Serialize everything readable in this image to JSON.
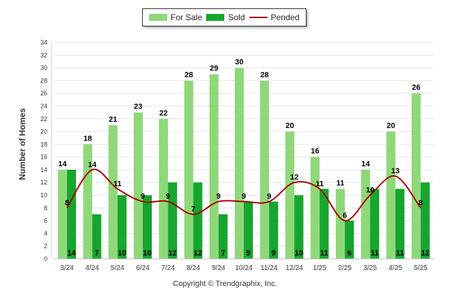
{
  "chart_data": {
    "type": "bar",
    "categories": [
      "3/24",
      "4/24",
      "5/24",
      "6/24",
      "7/24",
      "8/24",
      "9/24",
      "10/24",
      "11/24",
      "12/24",
      "1/25",
      "2/25",
      "3/25",
      "4/25",
      "5/25"
    ],
    "series": [
      {
        "name": "For Sale",
        "type": "bar",
        "color": "#8fd87a",
        "values": [
          14,
          18,
          21,
          23,
          22,
          28,
          29,
          30,
          28,
          20,
          16,
          11,
          14,
          20,
          26
        ]
      },
      {
        "name": "Sold",
        "type": "bar",
        "color": "#16a52e",
        "values": [
          14,
          7,
          10,
          10,
          12,
          12,
          7,
          9,
          9,
          10,
          11,
          6,
          11,
          11,
          12
        ]
      },
      {
        "name": "Pended",
        "type": "line",
        "color": "#b00000",
        "values": [
          8,
          14,
          11,
          9,
          9,
          7,
          9,
          9,
          9,
          12,
          11,
          6,
          10,
          13,
          8
        ]
      }
    ],
    "ylabel": "Number of Homes",
    "ylim": [
      0,
      34
    ],
    "yticks": [
      0,
      2,
      4,
      6,
      8,
      10,
      12,
      14,
      16,
      18,
      20,
      22,
      24,
      26,
      28,
      30,
      32,
      34
    ],
    "grid": true,
    "legend": "top-center"
  },
  "footer": {
    "copyright": "Copyright © Trendgraphix, Inc."
  }
}
